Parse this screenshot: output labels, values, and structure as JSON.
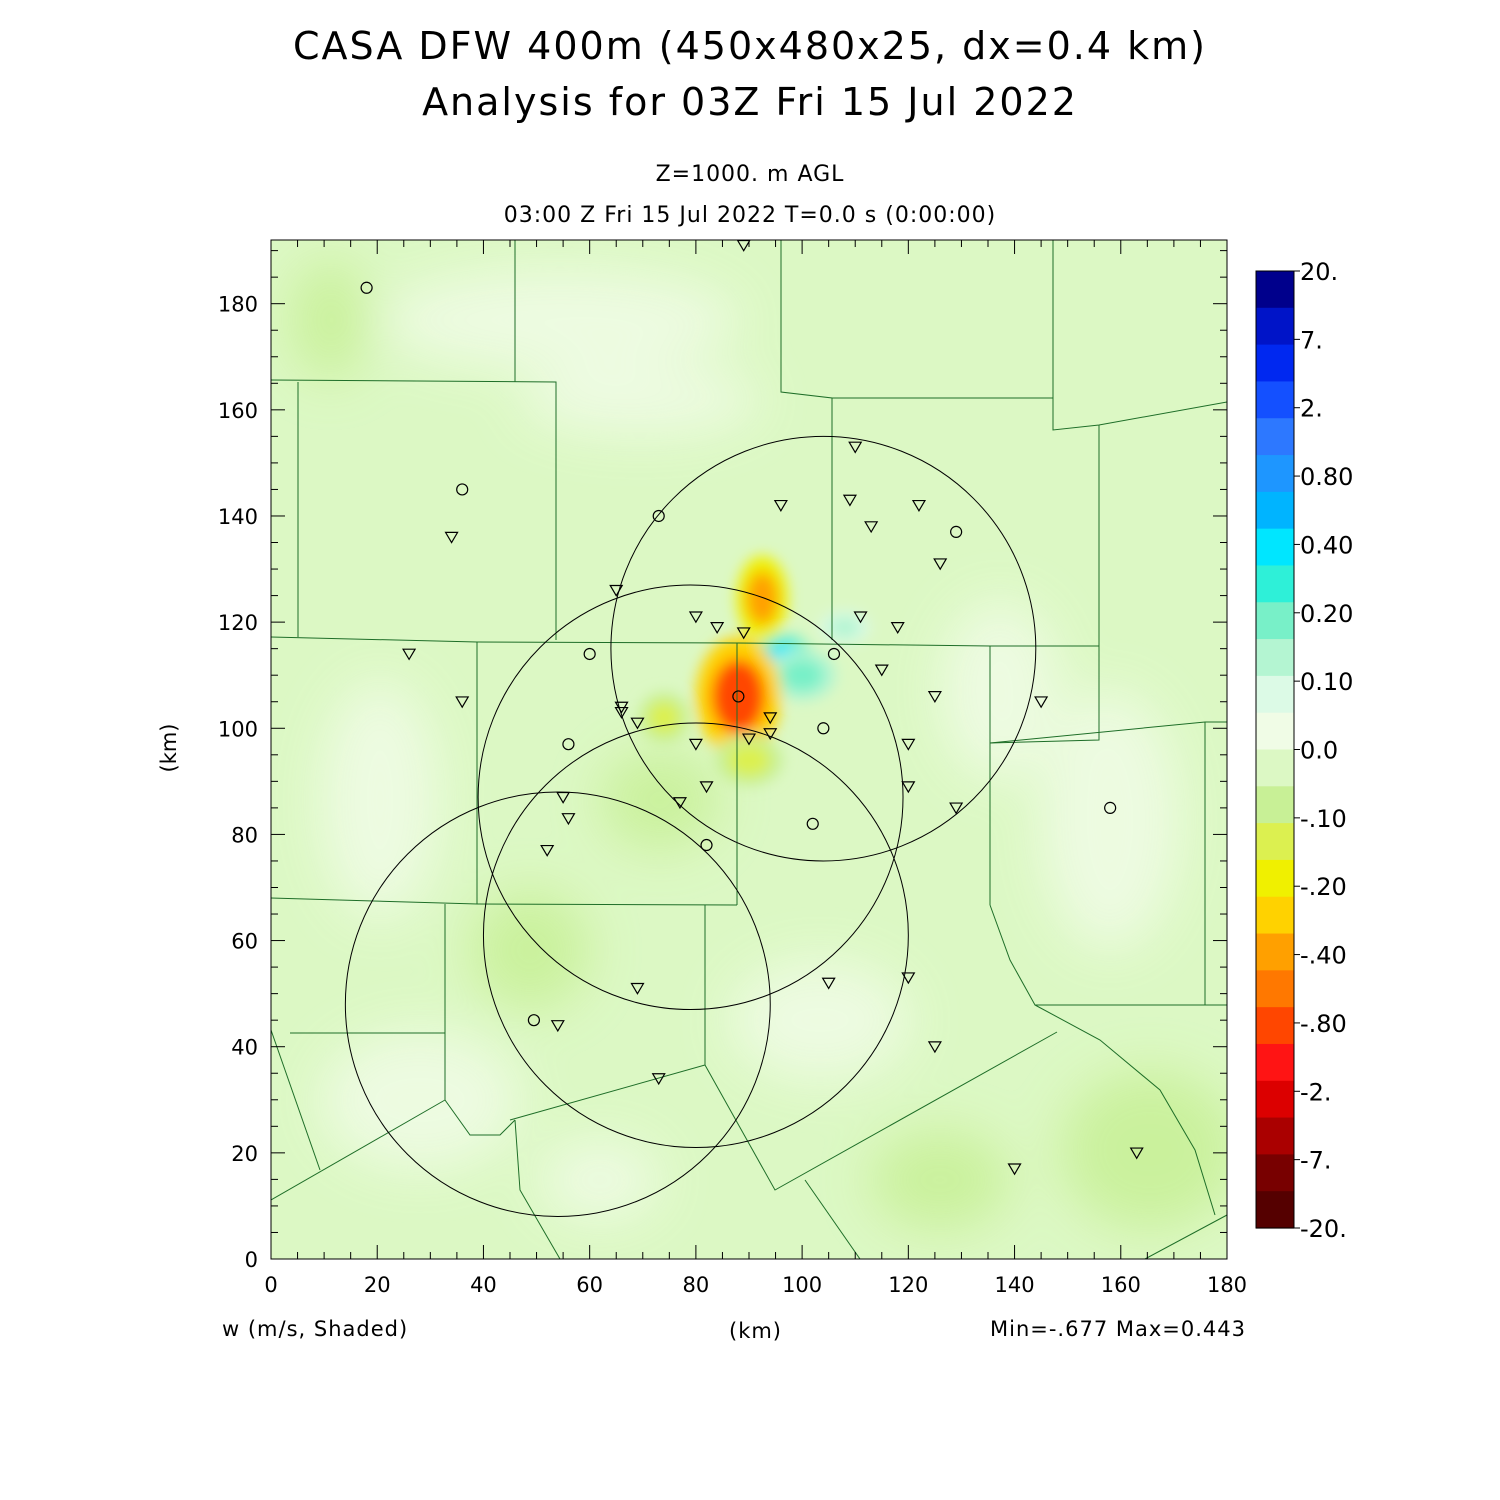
{
  "header": {
    "title_line1": "CASA DFW 400m (450x480x25, dx=0.4 km)",
    "title_line2": "Analysis for 03Z Fri 15 Jul 2022",
    "level": "Z=1000. m AGL",
    "time_line": "03:00 Z Fri 15 Jul 2022    T=0.0 s (0:00:00)"
  },
  "footer": {
    "variable": "w (m/s, Shaded)",
    "xaxis_unit": "(km)",
    "minmax": "Min=-.677 Max=0.443"
  },
  "chart_data": {
    "type": "heatmap",
    "variable": "w (m/s, Shaded)",
    "xlabel": "(km)",
    "ylabel": "(km)",
    "xlim": [
      0,
      180
    ],
    "ylim": [
      0,
      192
    ],
    "xticks": [
      0,
      20,
      40,
      60,
      80,
      100,
      120,
      140,
      160,
      180
    ],
    "yticks": [
      0,
      20,
      40,
      60,
      80,
      100,
      120,
      140,
      160,
      180
    ],
    "min": -0.677,
    "max": 0.443,
    "colorbar": {
      "labels": [
        "20.",
        "7.",
        "2.",
        "0.80",
        "0.40",
        "0.20",
        "0.10",
        "0.0",
        "-.10",
        "-.20",
        "-.40",
        "-.80",
        "-2.",
        "-7.",
        "-20."
      ],
      "colors": [
        "#00008c",
        "#0014c8",
        "#0028f0",
        "#1450ff",
        "#2d78ff",
        "#1e96ff",
        "#00b4ff",
        "#00e6ff",
        "#2ef0d8",
        "#78f0c8",
        "#b4f5d2",
        "#dcfae6",
        "#f0fce6",
        "#dcf8c4",
        "#c8f096",
        "#dcf050",
        "#f0f000",
        "#ffd200",
        "#ffa000",
        "#ff7800",
        "#ff4600",
        "#ff1414",
        "#dc0000",
        "#aa0000",
        "#780000",
        "#550000"
      ]
    },
    "features": [
      {
        "kind": "updraft",
        "x": 96.5,
        "y": 113,
        "rx": 3.5,
        "ry": 3,
        "value": 0.443
      },
      {
        "kind": "updraft",
        "x": 100,
        "y": 110,
        "rx": 4,
        "ry": 3,
        "value": 0.2
      },
      {
        "kind": "updraft",
        "x": 108,
        "y": 119,
        "rx": 3,
        "ry": 2,
        "value": 0.1
      },
      {
        "kind": "downdraft",
        "x": 88,
        "y": 106,
        "rx": 5,
        "ry": 7,
        "value": -0.677
      },
      {
        "kind": "downdraft",
        "x": 92.5,
        "y": 124.5,
        "rx": 3,
        "ry": 5,
        "value": -0.3
      },
      {
        "kind": "downdraft",
        "x": 74,
        "y": 102,
        "rx": 3,
        "ry": 3,
        "value": -0.15
      },
      {
        "kind": "downdraft",
        "x": 90,
        "y": 94,
        "rx": 4,
        "ry": 3,
        "value": -0.12
      }
    ],
    "radar_coverage": [
      {
        "x": 104,
        "y": 115,
        "r": 40
      },
      {
        "x": 79,
        "y": 87,
        "r": 40
      },
      {
        "x": 80,
        "y": 61,
        "r": 40
      },
      {
        "x": 54,
        "y": 48,
        "r": 40
      }
    ],
    "stations_circle": [
      [
        18,
        183
      ],
      [
        36,
        145
      ],
      [
        73,
        140
      ],
      [
        60,
        114
      ],
      [
        106,
        114
      ],
      [
        88,
        106
      ],
      [
        104,
        100
      ],
      [
        56,
        97
      ],
      [
        129,
        137
      ],
      [
        102,
        82
      ],
      [
        82,
        78
      ],
      [
        49.5,
        45
      ],
      [
        158,
        85
      ]
    ],
    "stations_triangle": [
      [
        89,
        191
      ],
      [
        110,
        153
      ],
      [
        96,
        142
      ],
      [
        109,
        143
      ],
      [
        122,
        142
      ],
      [
        113,
        138
      ],
      [
        34,
        136
      ],
      [
        126,
        131
      ],
      [
        65,
        126
      ],
      [
        80,
        121
      ],
      [
        84,
        119
      ],
      [
        89,
        118
      ],
      [
        111,
        121
      ],
      [
        118,
        119
      ],
      [
        26,
        114
      ],
      [
        115,
        111
      ],
      [
        36,
        105
      ],
      [
        66,
        104
      ],
      [
        66,
        103
      ],
      [
        69,
        101
      ],
      [
        94,
        102
      ],
      [
        94,
        99
      ],
      [
        90,
        98
      ],
      [
        80,
        97
      ],
      [
        120,
        97
      ],
      [
        125,
        106
      ],
      [
        145,
        105
      ],
      [
        82,
        89
      ],
      [
        77,
        86
      ],
      [
        120,
        89
      ],
      [
        129,
        85
      ],
      [
        55,
        87
      ],
      [
        56,
        83
      ],
      [
        52,
        77
      ],
      [
        120,
        53
      ],
      [
        105,
        52
      ],
      [
        69,
        51
      ],
      [
        54,
        44
      ],
      [
        125,
        40
      ],
      [
        73,
        34
      ],
      [
        140,
        17
      ],
      [
        163,
        20
      ]
    ]
  }
}
